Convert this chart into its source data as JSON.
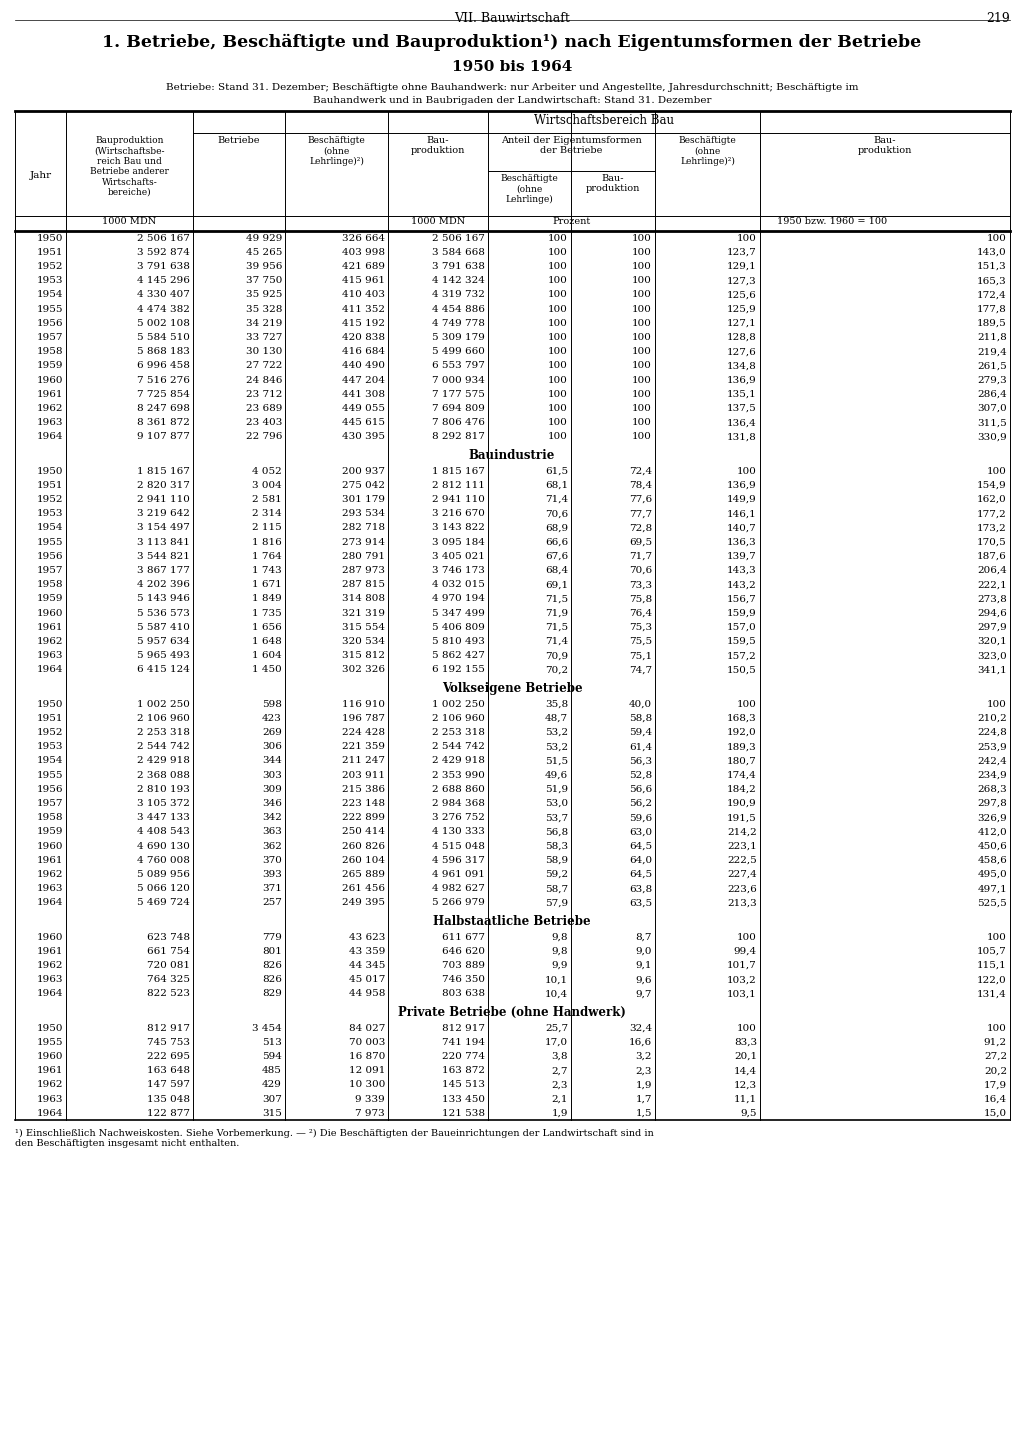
{
  "page_header": "VII. Bauwirtschaft",
  "page_number": "219",
  "title1": "1. Betriebe, Beschäftigte und Bauproduktion¹) nach Eigentumsformen der Betriebe",
  "title2": "1950 bis 1964",
  "subtitle1": "Betriebe: Stand 31. Dezember; Beschäftigte ohne Bauhandwerk: nur Arbeiter und Angestellte, Jahresdurchschnitt; Beschäftigte im",
  "subtitle2": "Bauhandwerk und in Baubrigaden der Landwirtschaft: Stand 31. Dezember",
  "col_header_jahr": "Jahr",
  "col_header_c1": "Bauproduktion\n(Wirtschaftsbe-\nreich Bau und\nBetriebe anderer\nWirtschafts-\nbereiche)",
  "col_header_c2": "Betriebe",
  "col_header_c3": "Beschäftigte\n(ohne\nLehrlinge)²)",
  "col_header_c4": "Bau-\nproduktion",
  "col_header_wirtschaft": "Wirtschaftsbereich Bau",
  "col_header_anteil": "Anteil der Eigentumsformen\nder Betriebe",
  "col_header_c5": "Beschäftigte\n(ohne\nLehrlinge)",
  "col_header_c6": "Bau-\nproduktion",
  "col_header_c7": "Beschäftigte\n(ohne\nLehrlinge)²)",
  "col_header_c8": "Bau-\nproduktion",
  "unit_c1": "1000 MDN",
  "unit_c4": "1000 MDN",
  "unit_c56": "Prozent",
  "unit_c78": "1950 bzw. 1960 = 100",
  "footnote1": "¹) Einschließlich Nachweiskosten. Siehe Vorbemerkung. — ²) Die Beschäftigten der Baueinrichtungen der Landwirtschaft sind in",
  "footnote2": "den Beschäftigten insgesamt nicht enthalten.",
  "sections": [
    {
      "name": "",
      "rows": [
        [
          "1950",
          "2 506 167",
          "49 929",
          "326 664",
          "2 506 167",
          "100",
          "100",
          "100",
          "100"
        ],
        [
          "1951",
          "3 592 874",
          "45 265",
          "403 998",
          "3 584 668",
          "100",
          "100",
          "123,7",
          "143,0"
        ],
        [
          "1952",
          "3 791 638",
          "39 956",
          "421 689",
          "3 791 638",
          "100",
          "100",
          "129,1",
          "151,3"
        ],
        [
          "1953",
          "4 145 296",
          "37 750",
          "415 961",
          "4 142 324",
          "100",
          "100",
          "127,3",
          "165,3"
        ],
        [
          "1954",
          "4 330 407",
          "35 925",
          "410 403",
          "4 319 732",
          "100",
          "100",
          "125,6",
          "172,4"
        ],
        [
          "1955",
          "4 474 382",
          "35 328",
          "411 352",
          "4 454 886",
          "100",
          "100",
          "125,9",
          "177,8"
        ],
        [
          "1956",
          "5 002 108",
          "34 219",
          "415 192",
          "4 749 778",
          "100",
          "100",
          "127,1",
          "189,5"
        ],
        [
          "1957",
          "5 584 510",
          "33 727",
          "420 838",
          "5 309 179",
          "100",
          "100",
          "128,8",
          "211,8"
        ],
        [
          "1958",
          "5 868 183",
          "30 130",
          "416 684",
          "5 499 660",
          "100",
          "100",
          "127,6",
          "219,4"
        ],
        [
          "1959",
          "6 996 458",
          "27 722",
          "440 490",
          "6 553 797",
          "100",
          "100",
          "134,8",
          "261,5"
        ],
        [
          "1960",
          "7 516 276",
          "24 846",
          "447 204",
          "7 000 934",
          "100",
          "100",
          "136,9",
          "279,3"
        ],
        [
          "1961",
          "7 725 854",
          "23 712",
          "441 308",
          "7 177 575",
          "100",
          "100",
          "135,1",
          "286,4"
        ],
        [
          "1962",
          "8 247 698",
          "23 689",
          "449 055",
          "7 694 809",
          "100",
          "100",
          "137,5",
          "307,0"
        ],
        [
          "1963",
          "8 361 872",
          "23 403",
          "445 615",
          "7 806 476",
          "100",
          "100",
          "136,4",
          "311,5"
        ],
        [
          "1964",
          "9 107 877",
          "22 796",
          "430 395",
          "8 292 817",
          "100",
          "100",
          "131,8",
          "330,9"
        ]
      ]
    },
    {
      "name": "Bauindustrie",
      "rows": [
        [
          "1950",
          "1 815 167",
          "4 052",
          "200 937",
          "1 815 167",
          "61,5",
          "72,4",
          "100",
          "100"
        ],
        [
          "1951",
          "2 820 317",
          "3 004",
          "275 042",
          "2 812 111",
          "68,1",
          "78,4",
          "136,9",
          "154,9"
        ],
        [
          "1952",
          "2 941 110",
          "2 581",
          "301 179",
          "2 941 110",
          "71,4",
          "77,6",
          "149,9",
          "162,0"
        ],
        [
          "1953",
          "3 219 642",
          "2 314",
          "293 534",
          "3 216 670",
          "70,6",
          "77,7",
          "146,1",
          "177,2"
        ],
        [
          "1954",
          "3 154 497",
          "2 115",
          "282 718",
          "3 143 822",
          "68,9",
          "72,8",
          "140,7",
          "173,2"
        ],
        [
          "1955",
          "3 113 841",
          "1 816",
          "273 914",
          "3 095 184",
          "66,6",
          "69,5",
          "136,3",
          "170,5"
        ],
        [
          "1956",
          "3 544 821",
          "1 764",
          "280 791",
          "3 405 021",
          "67,6",
          "71,7",
          "139,7",
          "187,6"
        ],
        [
          "1957",
          "3 867 177",
          "1 743",
          "287 973",
          "3 746 173",
          "68,4",
          "70,6",
          "143,3",
          "206,4"
        ],
        [
          "1958",
          "4 202 396",
          "1 671",
          "287 815",
          "4 032 015",
          "69,1",
          "73,3",
          "143,2",
          "222,1"
        ],
        [
          "1959",
          "5 143 946",
          "1 849",
          "314 808",
          "4 970 194",
          "71,5",
          "75,8",
          "156,7",
          "273,8"
        ],
        [
          "1960",
          "5 536 573",
          "1 735",
          "321 319",
          "5 347 499",
          "71,9",
          "76,4",
          "159,9",
          "294,6"
        ],
        [
          "1961",
          "5 587 410",
          "1 656",
          "315 554",
          "5 406 809",
          "71,5",
          "75,3",
          "157,0",
          "297,9"
        ],
        [
          "1962",
          "5 957 634",
          "1 648",
          "320 534",
          "5 810 493",
          "71,4",
          "75,5",
          "159,5",
          "320,1"
        ],
        [
          "1963",
          "5 965 493",
          "1 604",
          "315 812",
          "5 862 427",
          "70,9",
          "75,1",
          "157,2",
          "323,0"
        ],
        [
          "1964",
          "6 415 124",
          "1 450",
          "302 326",
          "6 192 155",
          "70,2",
          "74,7",
          "150,5",
          "341,1"
        ]
      ]
    },
    {
      "name": "Volkseigene Betriebe",
      "rows": [
        [
          "1950",
          "1 002 250",
          "598",
          "116 910",
          "1 002 250",
          "35,8",
          "40,0",
          "100",
          "100"
        ],
        [
          "1951",
          "2 106 960",
          "423",
          "196 787",
          "2 106 960",
          "48,7",
          "58,8",
          "168,3",
          "210,2"
        ],
        [
          "1952",
          "2 253 318",
          "269",
          "224 428",
          "2 253 318",
          "53,2",
          "59,4",
          "192,0",
          "224,8"
        ],
        [
          "1953",
          "2 544 742",
          "306",
          "221 359",
          "2 544 742",
          "53,2",
          "61,4",
          "189,3",
          "253,9"
        ],
        [
          "1954",
          "2 429 918",
          "344",
          "211 247",
          "2 429 918",
          "51,5",
          "56,3",
          "180,7",
          "242,4"
        ],
        [
          "1955",
          "2 368 088",
          "303",
          "203 911",
          "2 353 990",
          "49,6",
          "52,8",
          "174,4",
          "234,9"
        ],
        [
          "1956",
          "2 810 193",
          "309",
          "215 386",
          "2 688 860",
          "51,9",
          "56,6",
          "184,2",
          "268,3"
        ],
        [
          "1957",
          "3 105 372",
          "346",
          "223 148",
          "2 984 368",
          "53,0",
          "56,2",
          "190,9",
          "297,8"
        ],
        [
          "1958",
          "3 447 133",
          "342",
          "222 899",
          "3 276 752",
          "53,7",
          "59,6",
          "191,5",
          "326,9"
        ],
        [
          "1959",
          "4 408 543",
          "363",
          "250 414",
          "4 130 333",
          "56,8",
          "63,0",
          "214,2",
          "412,0"
        ],
        [
          "1960",
          "4 690 130",
          "362",
          "260 826",
          "4 515 048",
          "58,3",
          "64,5",
          "223,1",
          "450,6"
        ],
        [
          "1961",
          "4 760 008",
          "370",
          "260 104",
          "4 596 317",
          "58,9",
          "64,0",
          "222,5",
          "458,6"
        ],
        [
          "1962",
          "5 089 956",
          "393",
          "265 889",
          "4 961 091",
          "59,2",
          "64,5",
          "227,4",
          "495,0"
        ],
        [
          "1963",
          "5 066 120",
          "371",
          "261 456",
          "4 982 627",
          "58,7",
          "63,8",
          "223,6",
          "497,1"
        ],
        [
          "1964",
          "5 469 724",
          "257",
          "249 395",
          "5 266 979",
          "57,9",
          "63,5",
          "213,3",
          "525,5"
        ]
      ]
    },
    {
      "name": "Halbstaatliche Betriebe",
      "rows": [
        [
          "1960",
          "623 748",
          "779",
          "43 623",
          "611 677",
          "9,8",
          "8,7",
          "100",
          "100"
        ],
        [
          "1961",
          "661 754",
          "801",
          "43 359",
          "646 620",
          "9,8",
          "9,0",
          "99,4",
          "105,7"
        ],
        [
          "1962",
          "720 081",
          "826",
          "44 345",
          "703 889",
          "9,9",
          "9,1",
          "101,7",
          "115,1"
        ],
        [
          "1963",
          "764 325",
          "826",
          "45 017",
          "746 350",
          "10,1",
          "9,6",
          "103,2",
          "122,0"
        ],
        [
          "1964",
          "822 523",
          "829",
          "44 958",
          "803 638",
          "10,4",
          "9,7",
          "103,1",
          "131,4"
        ]
      ]
    },
    {
      "name": "Private Betriebe (ohne Handwerk)",
      "rows": [
        [
          "1950",
          "812 917",
          "3 454",
          "84 027",
          "812 917",
          "25,7",
          "32,4",
          "100",
          "100"
        ],
        [
          "1955",
          "745 753",
          "513",
          "70 003",
          "741 194",
          "17,0",
          "16,6",
          "83,3",
          "91,2"
        ],
        [
          "1960",
          "222 695",
          "594",
          "16 870",
          "220 774",
          "3,8",
          "3,2",
          "20,1",
          "27,2"
        ],
        [
          "1961",
          "163 648",
          "485",
          "12 091",
          "163 872",
          "2,7",
          "2,3",
          "14,4",
          "20,2"
        ],
        [
          "1962",
          "147 597",
          "429",
          "10 300",
          "145 513",
          "2,3",
          "1,9",
          "12,3",
          "17,9"
        ],
        [
          "1963",
          "135 048",
          "307",
          "9 339",
          "133 450",
          "2,1",
          "1,7",
          "11,1",
          "16,4"
        ],
        [
          "1964",
          "122 877",
          "315",
          "7 973",
          "121 538",
          "1,9",
          "1,5",
          "9,5",
          "15,0"
        ]
      ]
    }
  ]
}
